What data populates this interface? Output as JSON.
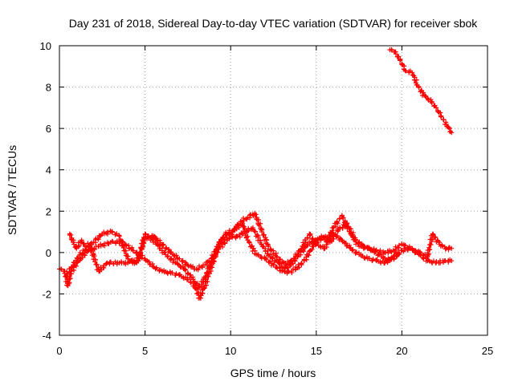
{
  "chart_data": {
    "type": "scatter",
    "title": "Day 231 of 2018, Sidereal Day-to-day VTEC variation (SDTVAR) for receiver sbok",
    "xlabel": "GPS time / hours",
    "ylabel": "SDTVAR / TECUs",
    "xlim": [
      0,
      25
    ],
    "ylim": [
      -4,
      10
    ],
    "xticks": [
      "0",
      "5",
      "10",
      "15",
      "20",
      "25"
    ],
    "yticks": [
      "-4",
      "-2",
      "0",
      "2",
      "4",
      "6",
      "8",
      "10"
    ],
    "grid": true,
    "marker": "+",
    "color": "#ff0000",
    "series": [
      {
        "name": "track-a",
        "points": [
          [
            0.0,
            -0.8
          ],
          [
            0.3,
            -0.9
          ],
          [
            0.5,
            -1.6
          ],
          [
            0.7,
            -0.9
          ],
          [
            1.2,
            -0.3
          ],
          [
            1.7,
            0.1
          ],
          [
            2.3,
            0.3
          ],
          [
            3.0,
            0.5
          ],
          [
            3.7,
            0.5
          ],
          [
            4.3,
            0.1
          ],
          [
            5.0,
            -0.3
          ],
          [
            5.5,
            -0.7
          ],
          [
            6.0,
            -0.9
          ],
          [
            6.5,
            -1.0
          ],
          [
            7.0,
            -1.1
          ],
          [
            7.5,
            -1.3
          ],
          [
            7.9,
            -1.6
          ],
          [
            8.2,
            -2.2
          ],
          [
            8.5,
            -1.6
          ],
          [
            8.9,
            -0.6
          ],
          [
            9.3,
            0.2
          ],
          [
            9.8,
            0.6
          ],
          [
            10.3,
            1.2
          ],
          [
            10.7,
            1.4
          ],
          [
            11.0,
            0.6
          ],
          [
            11.5,
            -0.1
          ],
          [
            12.0,
            -0.3
          ],
          [
            12.5,
            -0.6
          ],
          [
            13.0,
            -0.9
          ],
          [
            13.5,
            -0.6
          ],
          [
            14.0,
            -0.1
          ],
          [
            14.5,
            0.4
          ],
          [
            15.0,
            0.6
          ],
          [
            15.5,
            0.7
          ],
          [
            16.0,
            0.9
          ],
          [
            16.5,
            0.6
          ],
          [
            17.0,
            0.2
          ],
          [
            17.5,
            -0.1
          ],
          [
            18.0,
            -0.3
          ],
          [
            18.5,
            -0.4
          ],
          [
            19.0,
            -0.5
          ],
          [
            19.5,
            -0.2
          ],
          [
            20.0,
            0.1
          ],
          [
            20.5,
            0.2
          ],
          [
            21.0,
            -0.1
          ],
          [
            21.5,
            -0.4
          ],
          [
            22.0,
            -0.5
          ],
          [
            22.5,
            -0.4
          ],
          [
            22.9,
            -0.4
          ]
        ]
      },
      {
        "name": "track-b",
        "points": [
          [
            0.6,
            0.9
          ],
          [
            0.8,
            0.5
          ],
          [
            1.0,
            0.2
          ],
          [
            1.3,
            0.6
          ],
          [
            1.5,
            0.3
          ],
          [
            2.0,
            0.5
          ],
          [
            2.5,
            0.9
          ],
          [
            3.0,
            1.0
          ],
          [
            3.5,
            0.8
          ],
          [
            4.0,
            -0.3
          ],
          [
            4.5,
            -0.5
          ],
          [
            5.0,
            0.7
          ],
          [
            5.5,
            0.8
          ],
          [
            6.0,
            0.4
          ],
          [
            6.5,
            0.0
          ],
          [
            7.0,
            -0.3
          ],
          [
            7.5,
            -0.6
          ],
          [
            8.0,
            -0.8
          ],
          [
            8.5,
            -0.6
          ],
          [
            8.9,
            -0.3
          ],
          [
            9.3,
            0.4
          ],
          [
            9.7,
            0.9
          ],
          [
            10.2,
            1.1
          ],
          [
            10.6,
            1.5
          ],
          [
            11.0,
            1.7
          ],
          [
            11.4,
            1.9
          ],
          [
            11.8,
            1.1
          ],
          [
            12.2,
            0.3
          ],
          [
            12.7,
            -0.2
          ],
          [
            13.2,
            -0.6
          ],
          [
            13.7,
            -0.3
          ],
          [
            14.2,
            0.3
          ],
          [
            14.6,
            0.9
          ],
          [
            15.0,
            0.4
          ],
          [
            15.5,
            0.2
          ],
          [
            16.0,
            1.2
          ],
          [
            16.5,
            1.8
          ],
          [
            17.0,
            0.9
          ],
          [
            17.5,
            0.3
          ],
          [
            18.0,
            0.2
          ],
          [
            18.5,
            0.1
          ],
          [
            19.0,
            0.0
          ],
          [
            19.5,
            0.1
          ],
          [
            20.0,
            0.4
          ],
          [
            20.5,
            0.2
          ],
          [
            21.0,
            0.0
          ],
          [
            21.5,
            -0.2
          ],
          [
            21.8,
            0.9
          ],
          [
            22.2,
            0.4
          ],
          [
            22.6,
            0.2
          ],
          [
            22.9,
            0.2
          ]
        ]
      },
      {
        "name": "track-c",
        "points": [
          [
            0.4,
            -1.1
          ],
          [
            0.8,
            -0.6
          ],
          [
            1.2,
            -0.1
          ],
          [
            1.8,
            0.3
          ],
          [
            2.3,
            -0.9
          ],
          [
            2.8,
            -0.5
          ],
          [
            3.5,
            -0.5
          ],
          [
            4.0,
            -0.5
          ],
          [
            4.6,
            -0.4
          ],
          [
            5.0,
            0.9
          ],
          [
            5.6,
            0.5
          ],
          [
            6.2,
            -0.1
          ],
          [
            6.8,
            -0.5
          ],
          [
            7.3,
            -0.8
          ],
          [
            7.8,
            -1.3
          ],
          [
            8.2,
            -1.7
          ],
          [
            8.6,
            -1.0
          ],
          [
            9.0,
            -0.2
          ],
          [
            9.4,
            0.5
          ],
          [
            9.8,
            0.9
          ],
          [
            10.3,
            0.7
          ],
          [
            10.8,
            1.0
          ],
          [
            11.3,
            1.2
          ],
          [
            11.8,
            0.4
          ],
          [
            12.3,
            -0.2
          ],
          [
            12.8,
            -0.5
          ],
          [
            13.3,
            -1.0
          ],
          [
            13.8,
            -0.8
          ],
          [
            14.3,
            -0.4
          ],
          [
            14.8,
            0.3
          ],
          [
            15.3,
            0.8
          ],
          [
            15.8,
            0.5
          ],
          [
            16.3,
            1.1
          ],
          [
            16.8,
            1.4
          ],
          [
            17.3,
            0.6
          ],
          [
            17.8,
            0.3
          ],
          [
            18.3,
            0.1
          ],
          [
            18.8,
            -0.2
          ],
          [
            19.3,
            -0.4
          ],
          [
            19.8,
            -0.1
          ]
        ]
      },
      {
        "name": "track-top",
        "points": [
          [
            19.3,
            9.8
          ],
          [
            19.6,
            9.7
          ],
          [
            19.9,
            9.3
          ],
          [
            20.2,
            8.8
          ],
          [
            20.6,
            8.7
          ],
          [
            20.9,
            8.1
          ],
          [
            21.3,
            7.6
          ],
          [
            21.7,
            7.3
          ],
          [
            22.0,
            7.0
          ],
          [
            22.3,
            6.6
          ],
          [
            22.6,
            6.2
          ],
          [
            22.9,
            5.8
          ]
        ]
      }
    ]
  }
}
